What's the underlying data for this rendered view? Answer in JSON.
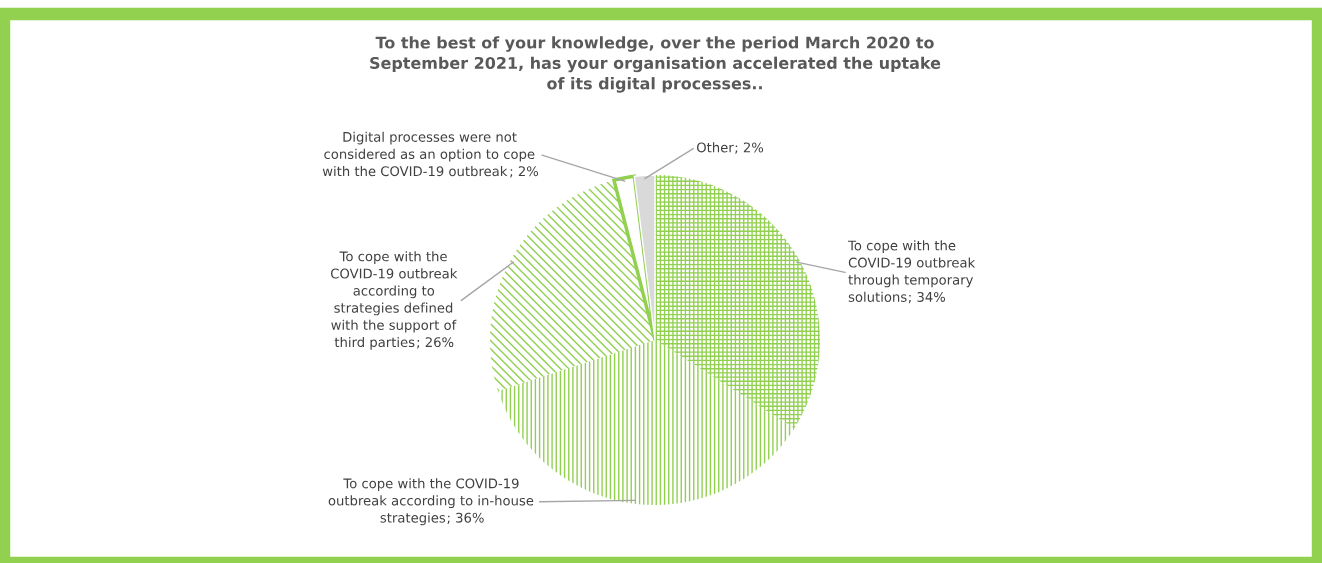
{
  "chart_data": {
    "type": "pie",
    "title": "To the best of your knowledge, over the period March 2020 to September 2021, has your organisation accelerated the uptake of its digital processes..",
    "categories": [
      "To cope with the COVID-19 outbreak through temporary solutions",
      "To cope with the COVID-19 outbreak according to in-house strategies",
      "To cope with the COVID-19 outbreak according to strategies defined with the support of third parties",
      "Digital processes were not considered as an option to cope with the COVID-19 outbreak",
      "Other"
    ],
    "values": [
      34,
      36,
      26,
      2,
      2
    ],
    "colors": [
      "#92d050",
      "#92d050",
      "#92d050",
      "#92d050",
      "#d9d9d9"
    ],
    "value_labels": [
      "; 34%",
      "; 36%",
      "; 26%",
      "; 2%",
      "; 2%"
    ]
  }
}
